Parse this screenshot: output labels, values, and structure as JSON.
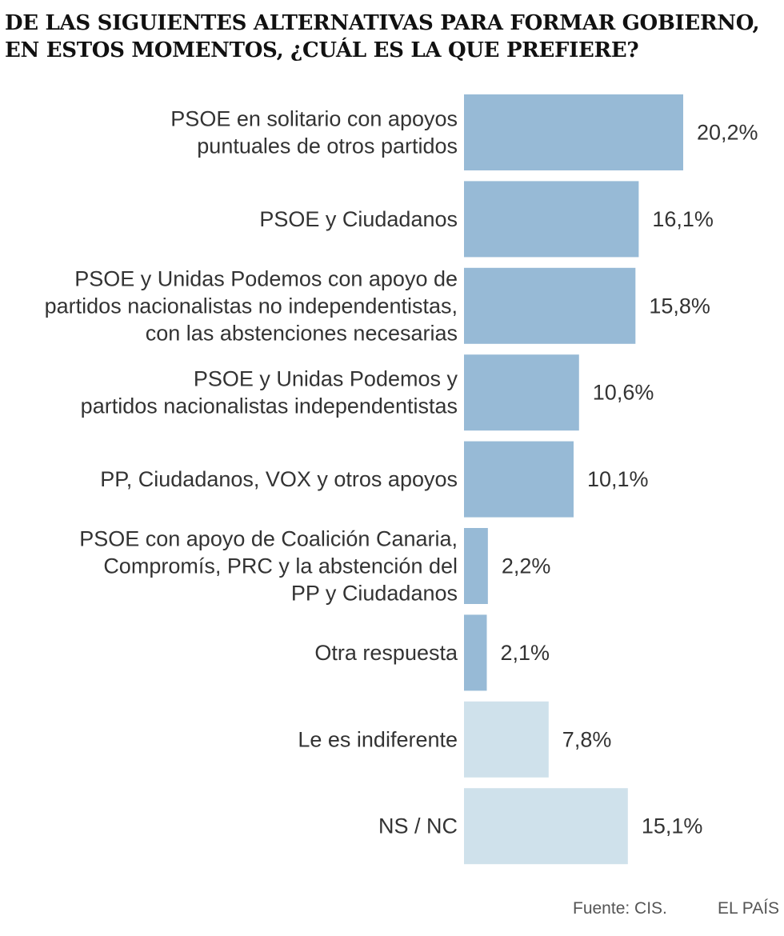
{
  "title_lines": [
    "DE LAS SIGUIENTES ALTERNATIVAS PARA FORMAR GOBIERNO,",
    "EN ESTOS MOMENTOS, ¿CUÁL ES LA QUE PREFIERE?"
  ],
  "footer": {
    "source": "Fuente: CIS.",
    "brand": "EL PAÍS"
  },
  "colors": {
    "primary_bar": "#97bad6",
    "secondary_bar": "#cfe1eb"
  },
  "chart_data": {
    "type": "bar",
    "orientation": "horizontal",
    "categories": [
      [
        "PSOE en solitario con apoyos",
        "puntuales de otros partidos"
      ],
      [
        "PSOE y Ciudadanos"
      ],
      [
        "PSOE y Unidas Podemos con apoyo de",
        "partidos nacionalistas no independentistas,",
        "con las abstenciones necesarias"
      ],
      [
        "PSOE y Unidas Podemos y",
        "partidos nacionalistas independentistas"
      ],
      [
        "PP, Ciudadanos, VOX y otros apoyos"
      ],
      [
        "PSOE con apoyo de Coalición Canaria,",
        "Compromís, PRC y la abstención del",
        "PP y Ciudadanos"
      ],
      [
        "Otra respuesta"
      ],
      [
        "Le es indiferente"
      ],
      [
        "NS / NC"
      ]
    ],
    "values": [
      20.2,
      16.1,
      15.8,
      10.6,
      10.1,
      2.2,
      2.1,
      7.8,
      15.1
    ],
    "value_labels": [
      "20,2%",
      "16,1%",
      "15,8%",
      "10,6%",
      "10,1%",
      "2,2%",
      "2,1%",
      "7,8%",
      "15,1%"
    ],
    "highlight": [
      "primary",
      "primary",
      "primary",
      "primary",
      "primary",
      "primary",
      "primary",
      "secondary",
      "secondary"
    ],
    "xlim": [
      0,
      20.2
    ],
    "grid": false,
    "legend": "none"
  }
}
